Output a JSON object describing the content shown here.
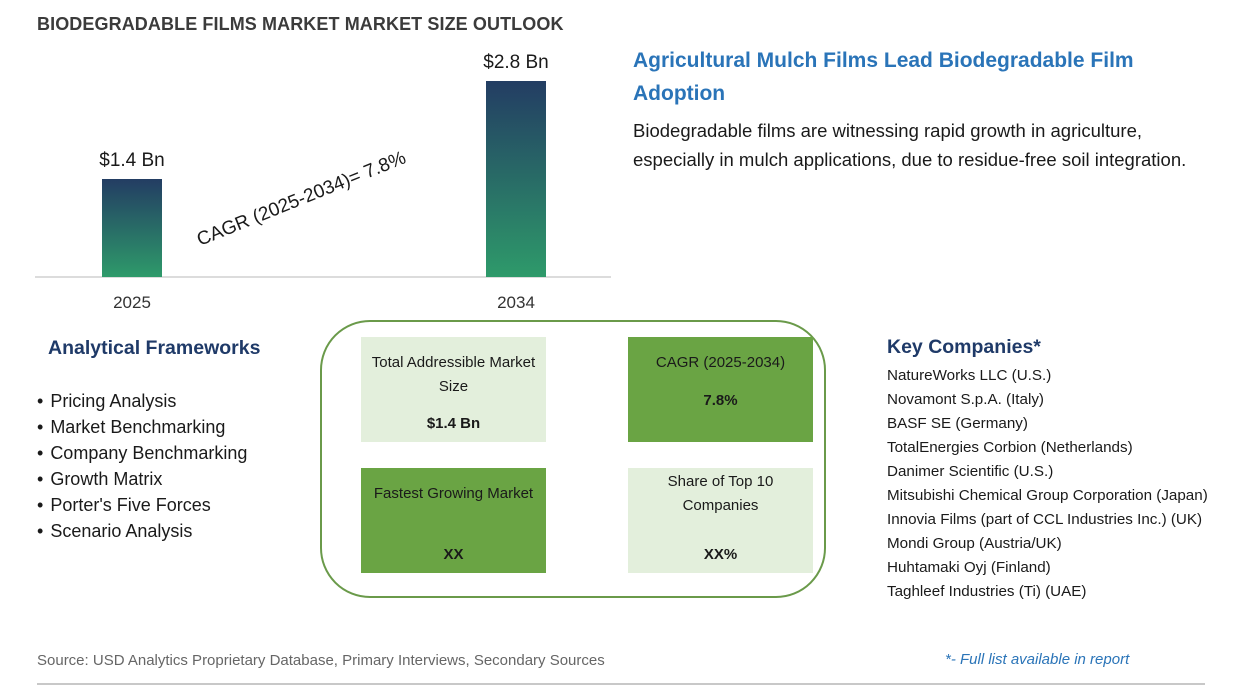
{
  "page_title": "BIODEGRADABLE FILMS MARKET MARKET SIZE OUTLOOK",
  "chart_data": {
    "type": "bar",
    "categories": [
      "2025",
      "2034"
    ],
    "values": [
      1.4,
      2.8
    ],
    "value_labels": [
      "$1.4 Bn",
      "$2.8 Bn"
    ],
    "annotation": "CAGR (2025-2034)=   7.8%",
    "ylim": [
      0,
      2.8
    ],
    "grid": false,
    "colors": {
      "bar_top": "#233d63",
      "bar_bottom": "#2e9a6a",
      "axis": "#d0d0d0"
    }
  },
  "headline": {
    "title": "Agricultural Mulch Films Lead Biodegradable Film Adoption",
    "body": "Biodegradable films are witnessing rapid growth in agriculture, especially in mulch applications, due to residue-free soil integration."
  },
  "frameworks": {
    "title": "Analytical Frameworks",
    "items": [
      "Pricing Analysis",
      "Market Benchmarking",
      "Company Benchmarking",
      "Growth Matrix",
      "Porter's Five Forces",
      "Scenario Analysis"
    ]
  },
  "stats": [
    {
      "label": "Total Addressible Market Size",
      "value": "$1.4 Bn",
      "style": "light"
    },
    {
      "label": "CAGR (2025-2034)",
      "value": "7.8%",
      "style": "dark"
    },
    {
      "label": "Fastest Growing Market",
      "value": "XX",
      "style": "dark"
    },
    {
      "label": "Share of Top 10 Companies",
      "value": "XX%",
      "style": "light"
    }
  ],
  "companies": {
    "title": "Key Companies*",
    "items": [
      "NatureWorks LLC (U.S.)",
      "Novamont S.p.A. (Italy)",
      "BASF SE (Germany)",
      "TotalEnergies Corbion (Netherlands)",
      "Danimer Scientific (U.S.)",
      "Mitsubishi Chemical Group Corporation (Japan)",
      "Innovia Films (part of CCL Industries Inc.) (UK)",
      "Mondi Group (Austria/UK)",
      "Huhtamaki Oyj (Finland)",
      "Taghleef Industries (Ti) (UAE)"
    ],
    "note": "*- Full list available in report"
  },
  "source": "Source: USD Analytics Proprietary Database, Primary Interviews, Secondary Sources"
}
